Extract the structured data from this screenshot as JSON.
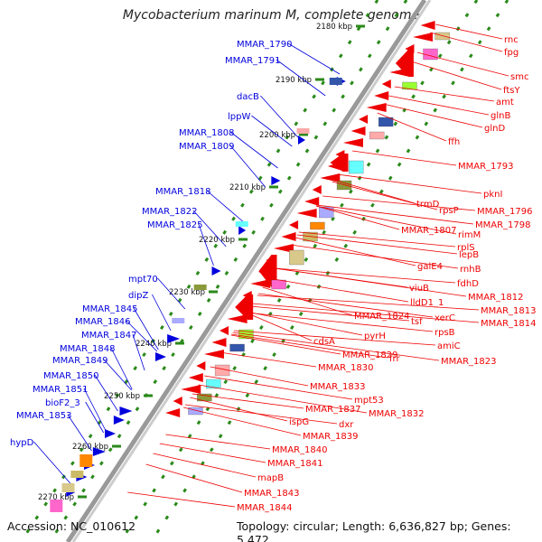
{
  "title": "Mycobacterium marinum M, complete genome",
  "footer": {
    "accession": "Accession: NC_010612",
    "summary": "Topology: circular; Length: 6,636,827 bp; Genes: 5,472"
  },
  "colors": {
    "forward": "#0000dd",
    "reverse": "#ee0000",
    "backbone": "#999999",
    "tick": "#2a8a1a"
  },
  "kbp_ticks": [
    "2180 kbp",
    "2190 kbp",
    "2200 kbp",
    "2210 kbp",
    "2220 kbp",
    "2230 kbp",
    "2240 kbp",
    "2250 kbp",
    "2260 kbp",
    "2270 kbp"
  ],
  "forward_genes": [
    "MMAR_1790",
    "MMAR_1791",
    "dacB",
    "lppW",
    "MMAR_1808",
    "MMAR_1809",
    "MMAR_1818",
    "MMAR_1822",
    "MMAR_1825",
    "mpt70",
    "dipZ",
    "MMAR_1845",
    "MMAR_1846",
    "MMAR_1847",
    "MMAR_1848",
    "MMAR_1849",
    "MMAR_1850",
    "MMAR_1851",
    "bioF2_3",
    "MMAR_1853",
    "hypD"
  ],
  "reverse_genes": [
    "rnc",
    "fpg",
    "smc",
    "ftsY",
    "amt",
    "glnB",
    "glnD",
    "ffh",
    "MMAR_1793",
    "pknI",
    "trmD",
    "rpsP",
    "MMAR_1796",
    "MMAR_1798",
    "MMAR_1807",
    "rimM",
    "rplS",
    "lepB",
    "rnhB",
    "galE4",
    "fdhD",
    "viuB",
    "lldD1_1",
    "MMAR_1812",
    "MMAR_1813",
    "MMAR_1814",
    "xerC",
    "MMAR_1824",
    "tsf",
    "rpsB",
    "pyrH",
    "cdsA",
    "amiC",
    "MMAR_1829",
    "frr",
    "MMAR_1823",
    "MMAR_1830",
    "MMAR_1833",
    "mpt53",
    "MMAR_1832",
    "MMAR_1837",
    "dxr",
    "ispG",
    "MMAR_1839",
    "MMAR_1840",
    "MMAR_1841",
    "mapB",
    "MMAR_1843",
    "MMAR_1844"
  ]
}
